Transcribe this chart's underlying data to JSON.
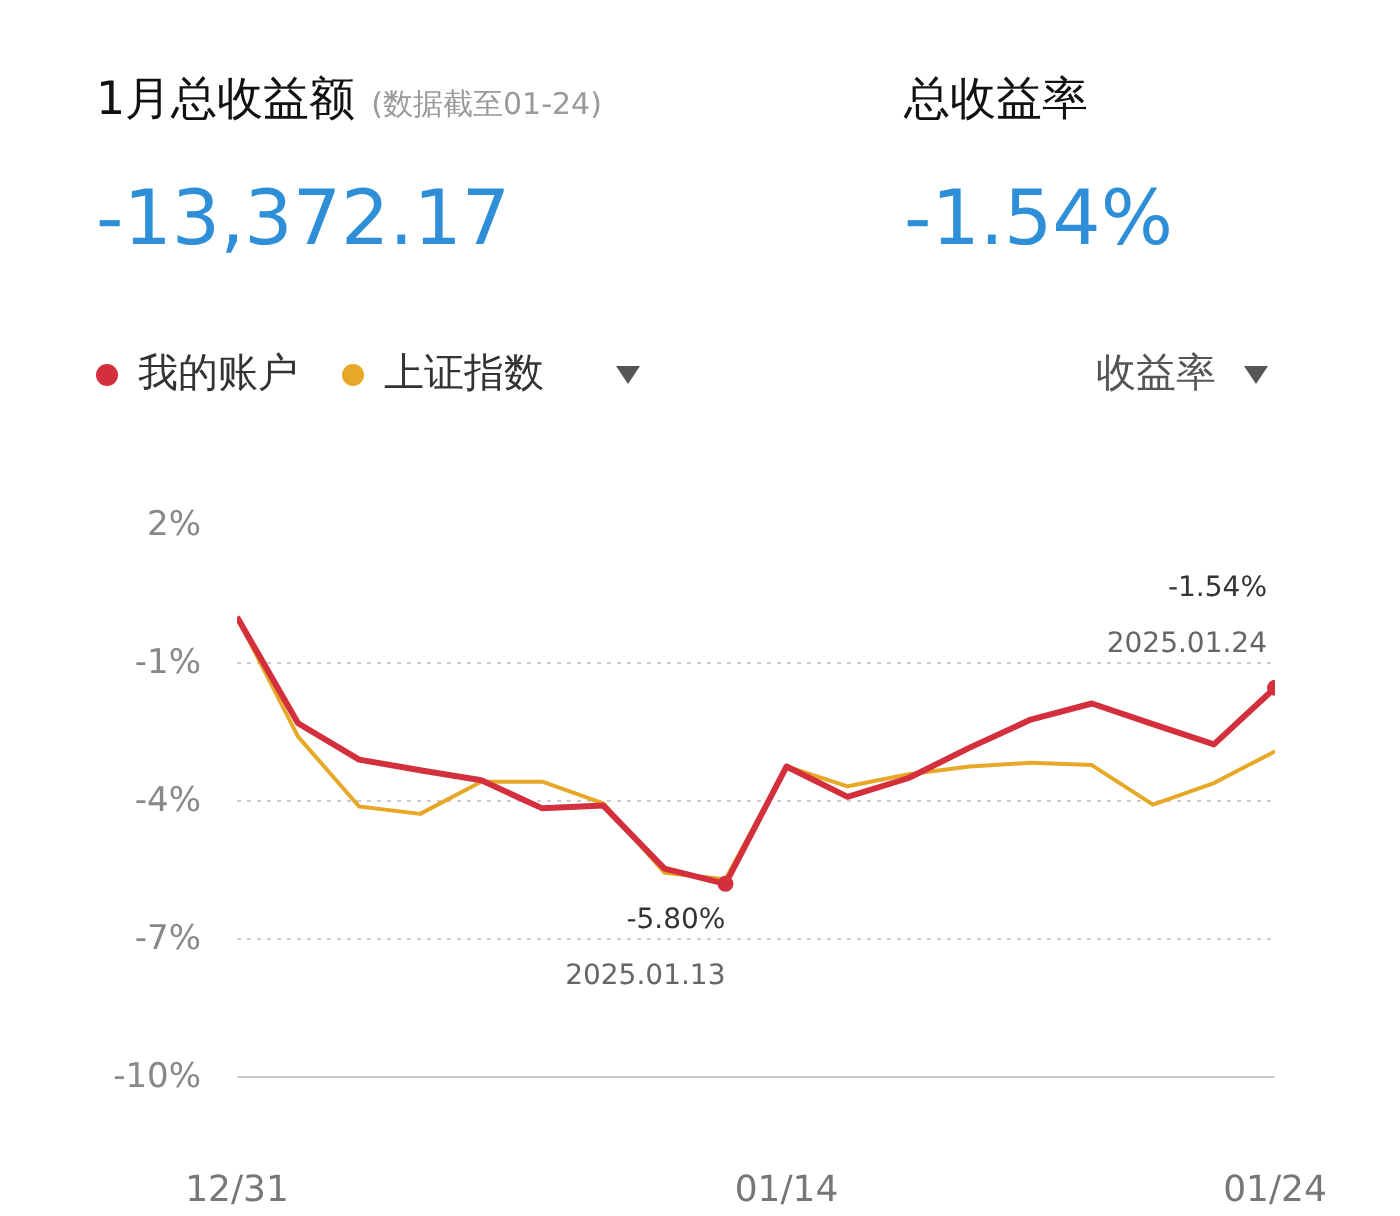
{
  "chart_data": {
    "type": "line",
    "title": "1月总收益额",
    "subtitle": "(数据截至01-24)",
    "categories": [
      "12/31",
      null,
      null,
      null,
      null,
      null,
      null,
      null,
      null,
      "01/14",
      null,
      null,
      null,
      null,
      null,
      null,
      null,
      "01/24"
    ],
    "series": [
      {
        "name": "我的账户",
        "color": "#d42f3c",
        "values": [
          0.0,
          -2.31,
          -3.1,
          -3.33,
          -3.55,
          -4.16,
          -4.1,
          -5.47,
          -5.8,
          -3.25,
          -3.91,
          -3.5,
          -2.84,
          -2.23,
          -1.88,
          -2.33,
          -2.77,
          -1.54
        ]
      },
      {
        "name": "上证指数",
        "color": "#e6a826",
        "values": [
          0.0,
          -2.6,
          -4.12,
          -4.28,
          -3.58,
          -3.58,
          -4.05,
          -5.56,
          -5.7,
          -3.25,
          -3.68,
          -3.42,
          -3.25,
          -3.17,
          -3.22,
          -4.08,
          -3.61,
          -2.92
        ]
      }
    ],
    "annotations": [
      "-13,372.17",
      "总收益率",
      "-1.54%",
      "收益率",
      "-5.80%",
      "2025.01.13",
      "-1.54%",
      "2025.01.24"
    ],
    "ylim": [
      -10,
      2
    ],
    "yticks": [
      {
        "value": 2,
        "label": "2%"
      },
      {
        "value": -1,
        "label": "-1%"
      },
      {
        "value": -4,
        "label": "-4%"
      },
      {
        "value": -7,
        "label": "-7%"
      },
      {
        "value": -10,
        "label": "-10%"
      }
    ],
    "grid": "y",
    "legend": "top left",
    "line_style": "solid"
  }
}
